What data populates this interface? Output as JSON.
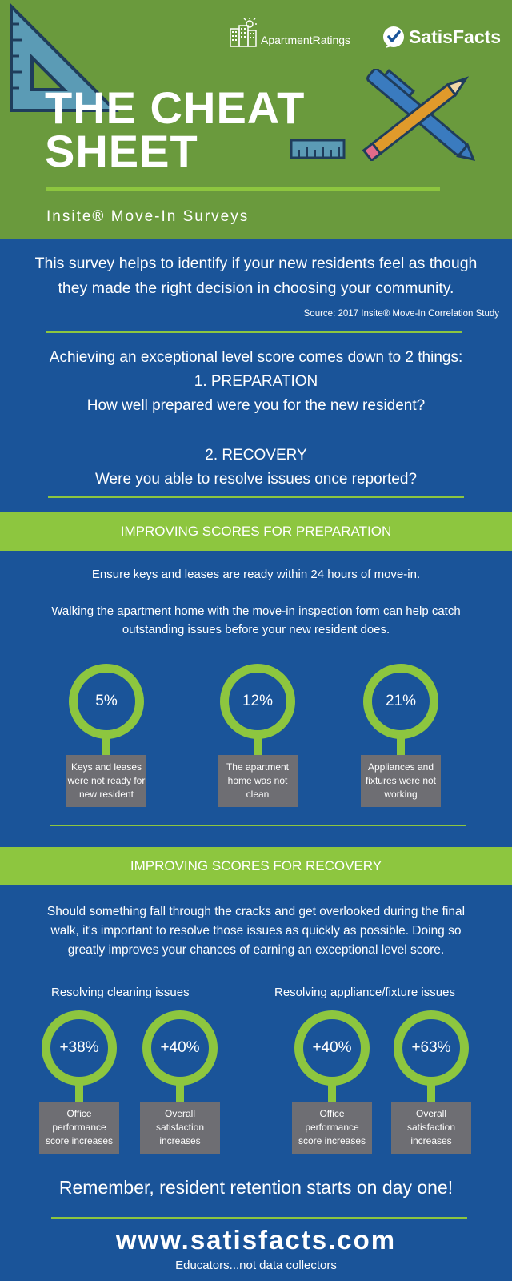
{
  "header": {
    "title_line1": "THE CHEAT",
    "title_line2": "SHEET",
    "subtitle": "Insite® Move-In Surveys",
    "logo_apartmentratings": "ApartmentRatings",
    "logo_satisfacts": "SatisFacts",
    "bg_color": "#6a9a3d",
    "accent_color": "#8dc63f"
  },
  "intro": {
    "line1": "This survey helps to identify if your new residents feel as though",
    "line2": "they made the right decision in choosing your community.",
    "source": "Source: 2017 Insite® Move-In Correlation Study"
  },
  "points": {
    "lead": "Achieving an exceptional level score comes down to 2 things:",
    "p1_title": "1. PREPARATION",
    "p1_question": "How well prepared were you for the new resident?",
    "p2_title": "2. RECOVERY",
    "p2_question": "Were you able to resolve issues once reported?"
  },
  "preparation": {
    "heading": "IMPROVING SCORES FOR PREPARATION",
    "text1": "Ensure keys and leases are ready within 24 hours of move-in.",
    "text2_line1": "Walking the apartment home with the move-in inspection form can help catch",
    "text2_line2": "outstanding issues before your new resident does.",
    "stats": [
      {
        "value": "5%",
        "label": "Keys and leases were not ready for new resident"
      },
      {
        "value": "12%",
        "label": "The apartment home was not clean"
      },
      {
        "value": "21%",
        "label": "Appliances and fixtures were not working"
      }
    ]
  },
  "recovery": {
    "heading": "IMPROVING SCORES FOR RECOVERY",
    "text_line1": "Should something fall through the cracks and get overlooked during the final",
    "text_line2": "walk, it's important to resolve those issues as quickly as possible.  Doing so",
    "text_line3": "greatly improves your chances of earning an exceptional level score.",
    "col1_title": "Resolving cleaning issues",
    "col2_title": "Resolving appliance/fixture issues",
    "stats": [
      {
        "value": "+38%",
        "label": "Office performance score increases"
      },
      {
        "value": "+40%",
        "label": "Overall satisfaction increases"
      },
      {
        "value": "+40%",
        "label": "Office performance score increases"
      },
      {
        "value": "+63%",
        "label": "Overall satisfaction increases"
      }
    ]
  },
  "footer": {
    "remember": "Remember, resident retention starts on day one!",
    "url": "www.satisfacts.com",
    "tagline": "Educators...not data collectors"
  },
  "colors": {
    "blue": "#1a5499",
    "green": "#8dc63f",
    "gray_box": "#6e6e73"
  }
}
